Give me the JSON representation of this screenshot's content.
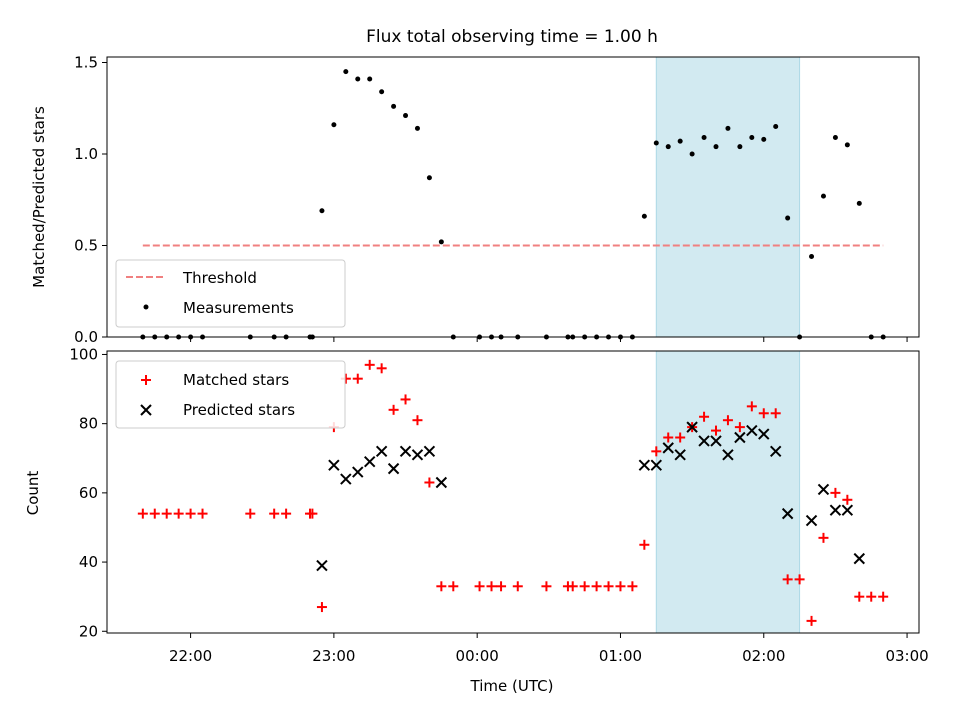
{
  "title": "Flux total observing time = 1.00 h",
  "colors": {
    "threshold": "#f08080",
    "measurement": "#000000",
    "matched": "#ff0000",
    "predicted": "#000000",
    "highlight": "#add8e6"
  },
  "chart_data": [
    {
      "type": "scatter",
      "panel": "top",
      "ylabel": "Matched/Predicted stars",
      "xlim": [
        "21:25",
        "03:05"
      ],
      "ylim": [
        0,
        1.53
      ],
      "yticks": [
        "0.0",
        "0.5",
        "1.0",
        "1.5"
      ],
      "grid": false,
      "legend_position": "lower-left",
      "highlight_span": [
        "01:15",
        "02:15"
      ],
      "threshold": {
        "name": "Threshold",
        "y": 0.5,
        "x_range": [
          "21:40",
          "02:50"
        ],
        "style": "dashed"
      },
      "series": [
        {
          "name": "Measurements",
          "marker": "dot",
          "points": [
            [
              "21:40",
              0
            ],
            [
              "21:45",
              0
            ],
            [
              "21:50",
              0
            ],
            [
              "21:55",
              0
            ],
            [
              "22:00",
              0
            ],
            [
              "22:05",
              0
            ],
            [
              "22:25",
              0
            ],
            [
              "22:35",
              0
            ],
            [
              "22:40",
              0
            ],
            [
              "22:50",
              0
            ],
            [
              "22:51",
              0
            ],
            [
              "22:55",
              0.69
            ],
            [
              "23:00",
              1.16
            ],
            [
              "23:05",
              1.45
            ],
            [
              "23:10",
              1.41
            ],
            [
              "23:15",
              1.41
            ],
            [
              "23:20",
              1.34
            ],
            [
              "23:25",
              1.26
            ],
            [
              "23:30",
              1.21
            ],
            [
              "23:35",
              1.14
            ],
            [
              "23:40",
              0.87
            ],
            [
              "23:45",
              0.52
            ],
            [
              "23:50",
              0
            ],
            [
              "00:01",
              0
            ],
            [
              "00:06",
              0
            ],
            [
              "00:10",
              0
            ],
            [
              "00:17",
              0
            ],
            [
              "00:29",
              0
            ],
            [
              "00:38",
              0
            ],
            [
              "00:40",
              0
            ],
            [
              "00:45",
              0
            ],
            [
              "00:50",
              0
            ],
            [
              "00:55",
              0
            ],
            [
              "01:00",
              0
            ],
            [
              "01:05",
              0
            ],
            [
              "01:10",
              0.66
            ],
            [
              "01:15",
              1.06
            ],
            [
              "01:20",
              1.04
            ],
            [
              "01:25",
              1.07
            ],
            [
              "01:30",
              1.0
            ],
            [
              "01:35",
              1.09
            ],
            [
              "01:40",
              1.04
            ],
            [
              "01:45",
              1.14
            ],
            [
              "01:50",
              1.04
            ],
            [
              "01:55",
              1.09
            ],
            [
              "02:00",
              1.08
            ],
            [
              "02:05",
              1.15
            ],
            [
              "02:10",
              0.65
            ],
            [
              "02:15",
              0
            ],
            [
              "02:20",
              0.44
            ],
            [
              "02:25",
              0.77
            ],
            [
              "02:30",
              1.09
            ],
            [
              "02:35",
              1.05
            ],
            [
              "02:40",
              0.73
            ],
            [
              "02:45",
              0
            ],
            [
              "02:50",
              0
            ]
          ]
        }
      ]
    },
    {
      "type": "scatter",
      "panel": "bottom",
      "xlabel": "Time (UTC)",
      "ylabel": "Count",
      "xlim": [
        "21:25",
        "03:05"
      ],
      "ylim": [
        19.5,
        101
      ],
      "yticks": [
        "20",
        "40",
        "60",
        "80",
        "100"
      ],
      "xticks": [
        "22:00",
        "23:00",
        "00:00",
        "01:00",
        "02:00",
        "03:00"
      ],
      "grid": false,
      "legend_position": "upper-left",
      "highlight_span": [
        "01:15",
        "02:15"
      ],
      "series": [
        {
          "name": "Matched stars",
          "marker": "plus",
          "points": [
            [
              "21:40",
              54
            ],
            [
              "21:45",
              54
            ],
            [
              "21:50",
              54
            ],
            [
              "21:55",
              54
            ],
            [
              "22:00",
              54
            ],
            [
              "22:05",
              54
            ],
            [
              "22:25",
              54
            ],
            [
              "22:35",
              54
            ],
            [
              "22:40",
              54
            ],
            [
              "22:50",
              54
            ],
            [
              "22:51",
              54
            ],
            [
              "22:55",
              27
            ],
            [
              "23:00",
              79
            ],
            [
              "23:05",
              93
            ],
            [
              "23:10",
              93
            ],
            [
              "23:15",
              97
            ],
            [
              "23:20",
              96
            ],
            [
              "23:25",
              84
            ],
            [
              "23:30",
              87
            ],
            [
              "23:35",
              81
            ],
            [
              "23:40",
              63
            ],
            [
              "23:45",
              33
            ],
            [
              "23:50",
              33
            ],
            [
              "00:01",
              33
            ],
            [
              "00:06",
              33
            ],
            [
              "00:10",
              33
            ],
            [
              "00:17",
              33
            ],
            [
              "00:29",
              33
            ],
            [
              "00:38",
              33
            ],
            [
              "00:40",
              33
            ],
            [
              "00:45",
              33
            ],
            [
              "00:50",
              33
            ],
            [
              "00:55",
              33
            ],
            [
              "01:00",
              33
            ],
            [
              "01:05",
              33
            ],
            [
              "01:10",
              45
            ],
            [
              "01:15",
              72
            ],
            [
              "01:20",
              76
            ],
            [
              "01:25",
              76
            ],
            [
              "01:30",
              79
            ],
            [
              "01:35",
              82
            ],
            [
              "01:40",
              78
            ],
            [
              "01:45",
              81
            ],
            [
              "01:50",
              79
            ],
            [
              "01:55",
              85
            ],
            [
              "02:00",
              83
            ],
            [
              "02:05",
              83
            ],
            [
              "02:10",
              35
            ],
            [
              "02:15",
              35
            ],
            [
              "02:20",
              23
            ],
            [
              "02:25",
              47
            ],
            [
              "02:30",
              60
            ],
            [
              "02:35",
              58
            ],
            [
              "02:40",
              30
            ],
            [
              "02:45",
              30
            ],
            [
              "02:50",
              30
            ]
          ]
        },
        {
          "name": "Predicted stars",
          "marker": "x",
          "points": [
            [
              "22:55",
              39
            ],
            [
              "23:00",
              68
            ],
            [
              "23:05",
              64
            ],
            [
              "23:10",
              66
            ],
            [
              "23:15",
              69
            ],
            [
              "23:20",
              72
            ],
            [
              "23:25",
              67
            ],
            [
              "23:30",
              72
            ],
            [
              "23:35",
              71
            ],
            [
              "23:40",
              72
            ],
            [
              "23:45",
              63
            ],
            [
              "01:10",
              68
            ],
            [
              "01:15",
              68
            ],
            [
              "01:20",
              73
            ],
            [
              "01:25",
              71
            ],
            [
              "01:30",
              79
            ],
            [
              "01:35",
              75
            ],
            [
              "01:40",
              75
            ],
            [
              "01:45",
              71
            ],
            [
              "01:50",
              76
            ],
            [
              "01:55",
              78
            ],
            [
              "02:00",
              77
            ],
            [
              "02:05",
              72
            ],
            [
              "02:10",
              54
            ],
            [
              "02:20",
              52
            ],
            [
              "02:25",
              61
            ],
            [
              "02:30",
              55
            ],
            [
              "02:35",
              55
            ],
            [
              "02:40",
              41
            ]
          ]
        }
      ]
    }
  ]
}
